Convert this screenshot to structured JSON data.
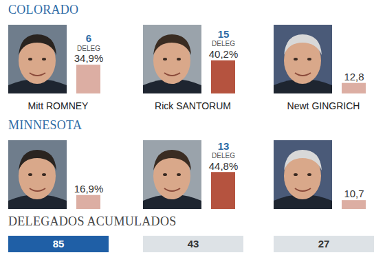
{
  "chart_data": [
    {
      "type": "bar",
      "title": "COLORADO",
      "categories": [
        "Mitt ROMNEY",
        "Rick SANTORUM",
        "Newt GINGRICH"
      ],
      "values": [
        34.9,
        40.2,
        12.8
      ],
      "value_labels": [
        "34,9%",
        "40,2%",
        "12,8"
      ],
      "delegates": [
        6,
        15,
        null
      ],
      "delegates_label": "DELEG",
      "colors": [
        "#dcaea3",
        "#b5533f",
        "#dcaea3"
      ],
      "ylim": [
        0,
        50
      ],
      "tick_labels": false,
      "data_labels": true
    },
    {
      "type": "bar",
      "title": "MINNESOTA",
      "categories": [
        null,
        null,
        null
      ],
      "values": [
        16.9,
        44.8,
        10.7
      ],
      "value_labels": [
        "16,9%",
        "44,8%",
        "10,7"
      ],
      "delegates": [
        null,
        13,
        null
      ],
      "delegates_label": "DELEG",
      "colors": [
        "#dcaea3",
        "#b5533f",
        "#dcaea3"
      ],
      "ylim": [
        0,
        50
      ],
      "tick_labels": false,
      "data_labels": true
    },
    {
      "type": "table",
      "title": "DELEGADOS ACUMULADOS",
      "values": [
        85,
        43,
        27
      ],
      "colors": [
        "#1f5fa6",
        "#dde2e6",
        "#dde2e6"
      ]
    }
  ]
}
